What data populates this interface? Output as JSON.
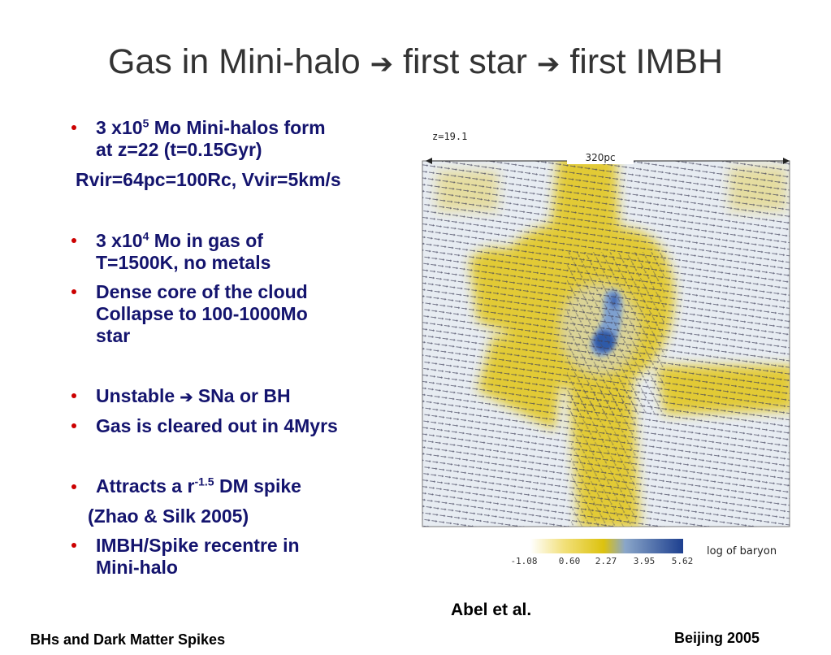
{
  "slide": {
    "title_part1": "Gas in Mini-halo",
    "title_part2": "first star",
    "title_part3": "first IMBH",
    "arrow_glyph": "➔"
  },
  "bullets": {
    "b1_pre": "3 x10",
    "b1_sup": "5",
    "b1_post": " Mo Mini-halos form",
    "b1_line2": "at z=22 (t=0.15Gyr)",
    "rvir_line": "Rvir=64pc=100Rc, Vvir=5km/s",
    "b2_pre": "3 x10",
    "b2_sup": "4",
    "b2_post": " Mo in gas of",
    "b2_line2": "T=1500K, no metals",
    "b3_line1": "Dense core of the cloud",
    "b3_line2": "Collapse to 100-1000Mo",
    "b3_line3": "star",
    "b4_pre": "Unstable ",
    "b4_post": " SNa or BH",
    "b5": "Gas is cleared out in 4Myrs",
    "b6_pre": "Attracts a r",
    "b6_sup": "-1.5",
    "b6_post": " DM spike",
    "zhao_line": "(Zhao & Silk 2005)",
    "b7_line1": "IMBH/Spike recentre in",
    "b7_line2": "Mini-halo"
  },
  "figure": {
    "redshift_label": "z=19.1",
    "scale_label": "320pc",
    "colorbar_ticks": [
      "-1.08",
      "0.60",
      "2.27",
      "3.95",
      "5.62"
    ],
    "colorbar_label": "log of baryon",
    "colors": {
      "low": "#e6ecf1",
      "mid": "#e3c81e",
      "high": "#2f5aa8"
    }
  },
  "captions": {
    "credit": "Abel et al.",
    "footer_left": "BHs and Dark Matter Spikes",
    "footer_right": "Beijing 2005"
  }
}
